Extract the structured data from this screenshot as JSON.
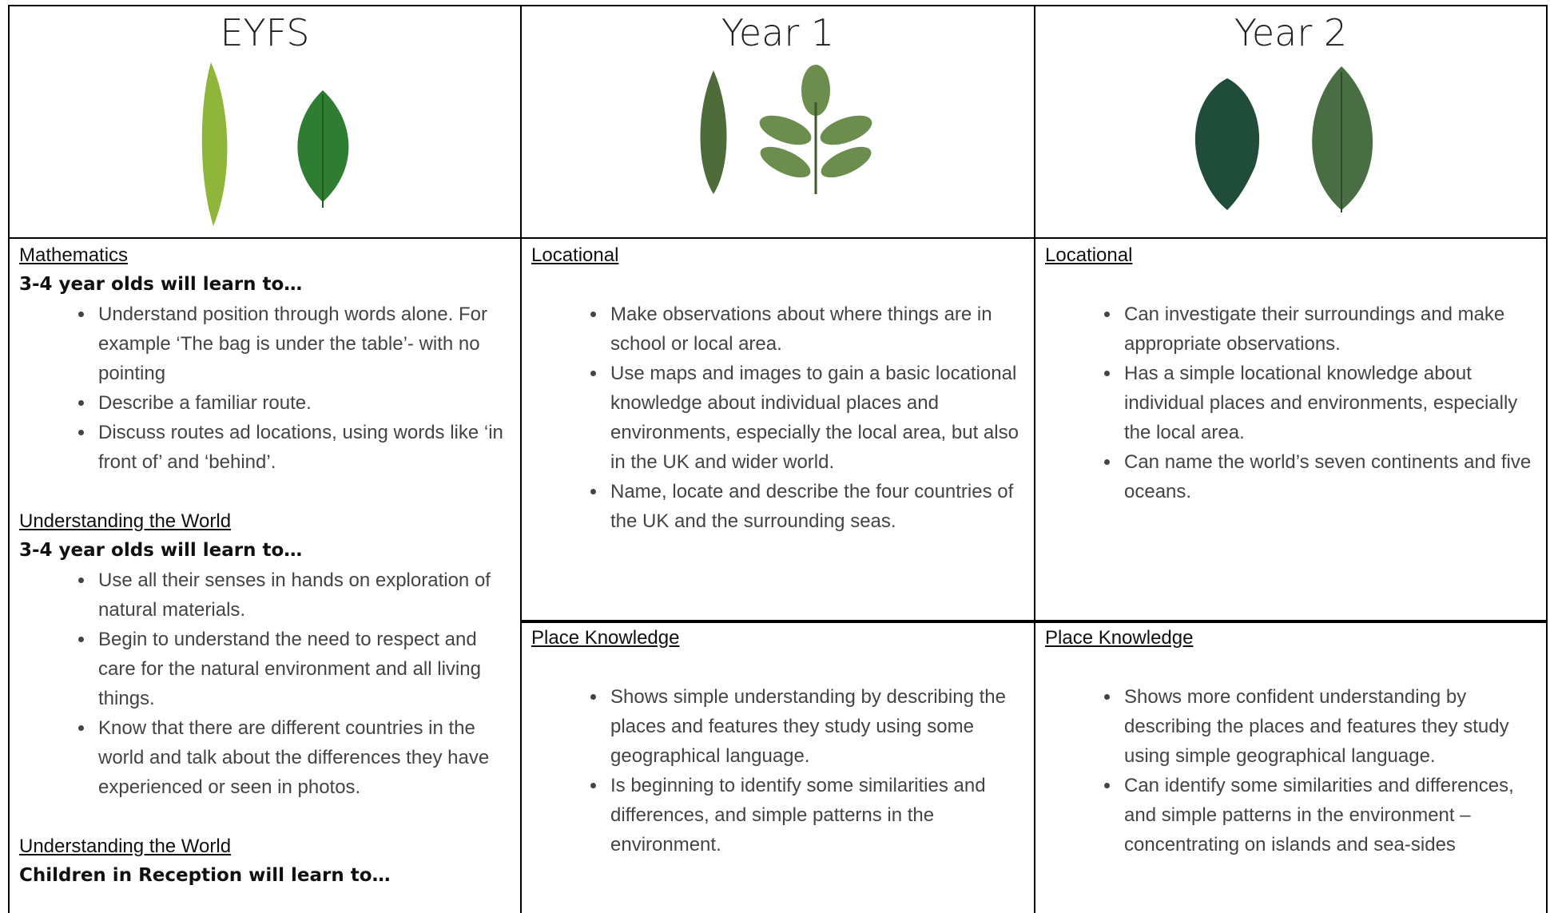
{
  "header": {
    "columns": [
      {
        "title": "EYFS"
      },
      {
        "title": "Year 1"
      },
      {
        "title": "Year 2"
      }
    ]
  },
  "table": {
    "columns": [
      {
        "cells": [
          {
            "sections": [
              {
                "heading": "Mathematics",
                "intro": "3-4 year olds will learn to…",
                "bullets": [
                  "Understand position through words alone. For example ‘The bag is under the table’- with no pointing",
                  "Describe a familiar route.",
                  "Discuss routes ad locations, using words like ‘in front of’ and ‘behind’."
                ]
              },
              {
                "heading": "Understanding the World",
                "intro": "3-4 year olds will learn to…",
                "bullets": [
                  "Use all their senses in hands on exploration of natural materials.",
                  "Begin to understand the need to respect and care for the natural environment and all living things.",
                  "Know that there are different countries in the world and talk about the differences they have experienced or seen in photos."
                ]
              },
              {
                "heading": "Understanding the World",
                "intro": "Children in Reception will learn to…",
                "bullets": []
              }
            ]
          }
        ]
      },
      {
        "cells": [
          {
            "sections": [
              {
                "heading": "Locational",
                "bullets": [
                  "Make observations about where things are in school or local area.",
                  "Use maps and images to gain a basic locational knowledge about individual places and environments, especially the local area, but also in the UK and wider world.",
                  "Name, locate and describe the four countries of the UK and the surrounding seas."
                ]
              }
            ]
          },
          {
            "sections": [
              {
                "heading": "Place Knowledge",
                "bullets": [
                  "Shows simple understanding by describing the places and features they study using some geographical language.",
                  "Is beginning to identify some similarities and differences, and simple patterns in the environment."
                ]
              }
            ]
          }
        ]
      },
      {
        "cells": [
          {
            "sections": [
              {
                "heading": "Locational",
                "bullets": [
                  "Can investigate their surroundings and make appropriate observations.",
                  "Has a simple locational knowledge about individual places and environments, especially the local area.",
                  "Can name the world’s seven continents and five oceans."
                ]
              }
            ]
          },
          {
            "sections": [
              {
                "heading": "Place Knowledge",
                "bullets": [
                  "Shows more confident understanding by describing the places and features they study using simple geographical language.",
                  "Can identify some similarities and differences, and simple patterns in the environment – concentrating on islands and sea-sides"
                ]
              }
            ]
          }
        ]
      }
    ]
  }
}
